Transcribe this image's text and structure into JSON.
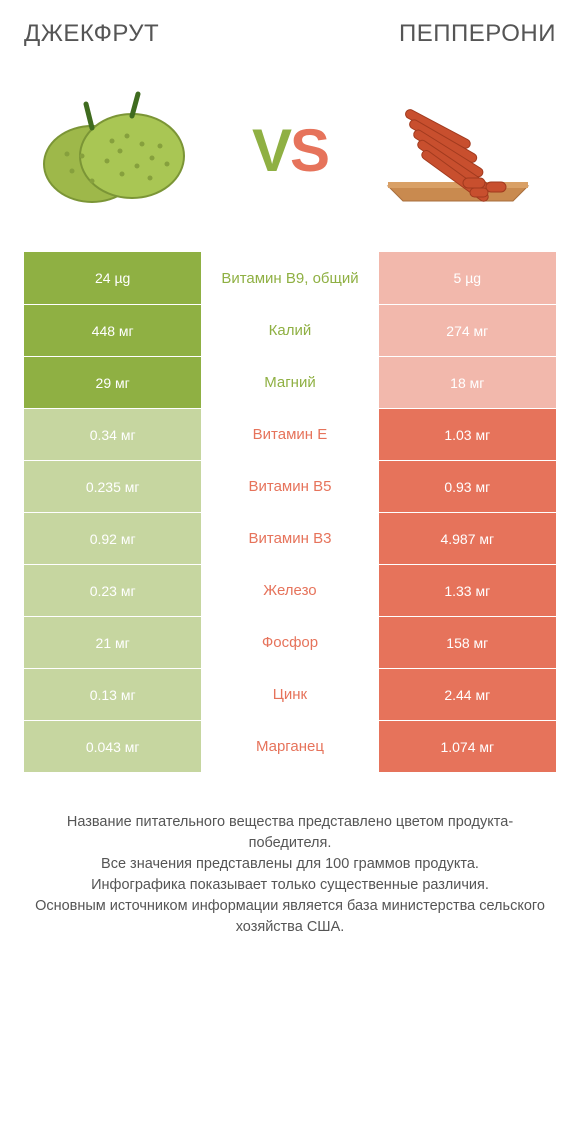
{
  "colors": {
    "green": "#8fb043",
    "green_light": "#c6d6a0",
    "red": "#e6735b",
    "red_light": "#f2b8ac",
    "text": "#555555",
    "white": "#ffffff"
  },
  "header": {
    "left_title": "ДЖЕКФРУТ",
    "right_title": "ПЕППЕРОНИ"
  },
  "vs": {
    "v": "V",
    "s": "S"
  },
  "rows": [
    {
      "left": "24 µg",
      "mid": "Витамин B9, общий",
      "right": "5 µg",
      "winner": "left"
    },
    {
      "left": "448 мг",
      "mid": "Калий",
      "right": "274 мг",
      "winner": "left"
    },
    {
      "left": "29 мг",
      "mid": "Магний",
      "right": "18 мг",
      "winner": "left"
    },
    {
      "left": "0.34 мг",
      "mid": "Витамин E",
      "right": "1.03 мг",
      "winner": "right"
    },
    {
      "left": "0.235 мг",
      "mid": "Витамин B5",
      "right": "0.93 мг",
      "winner": "right"
    },
    {
      "left": "0.92 мг",
      "mid": "Витамин B3",
      "right": "4.987 мг",
      "winner": "right"
    },
    {
      "left": "0.23 мг",
      "mid": "Железо",
      "right": "1.33 мг",
      "winner": "right"
    },
    {
      "left": "21 мг",
      "mid": "Фосфор",
      "right": "158 мг",
      "winner": "right"
    },
    {
      "left": "0.13 мг",
      "mid": "Цинк",
      "right": "2.44 мг",
      "winner": "right"
    },
    {
      "left": "0.043 мг",
      "mid": "Марганец",
      "right": "1.074 мг",
      "winner": "right"
    }
  ],
  "footer": {
    "line1": "Название питательного вещества представлено цветом продукта-победителя.",
    "line2": "Все значения представлены для 100 граммов продукта.",
    "line3": "Инфографика показывает только существенные различия.",
    "line4": "Основным источником информации является база министерства сельского хозяйства США."
  }
}
